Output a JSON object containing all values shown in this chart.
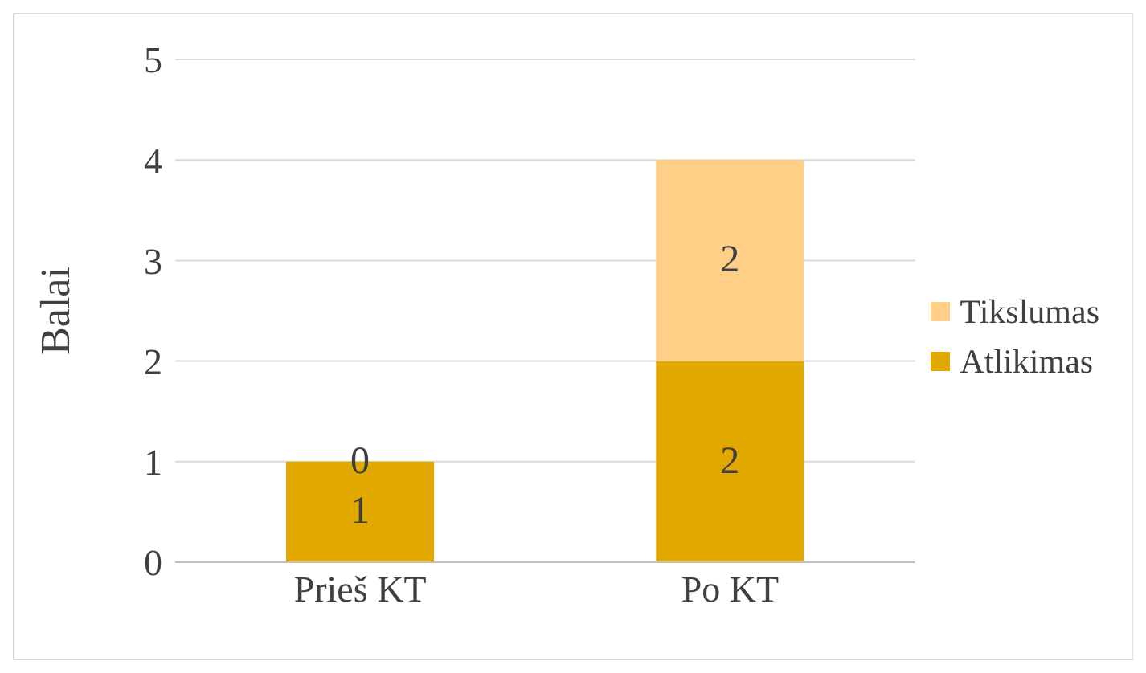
{
  "chart_data": {
    "type": "bar",
    "ylabel": "Balai",
    "categories": [
      "Prieš KT",
      "Po KT"
    ],
    "stacked": true,
    "series": [
      {
        "name": "Atlikimas",
        "color": "#e1a800",
        "values": [
          1,
          2
        ]
      },
      {
        "name": "Tikslumas",
        "color": "#ffcf87",
        "values": [
          0,
          2
        ]
      }
    ],
    "ylim": [
      0,
      5
    ],
    "yticks": [
      0,
      1,
      2,
      3,
      4,
      5
    ],
    "grid": "y",
    "legend": "right",
    "data_labels": true
  }
}
